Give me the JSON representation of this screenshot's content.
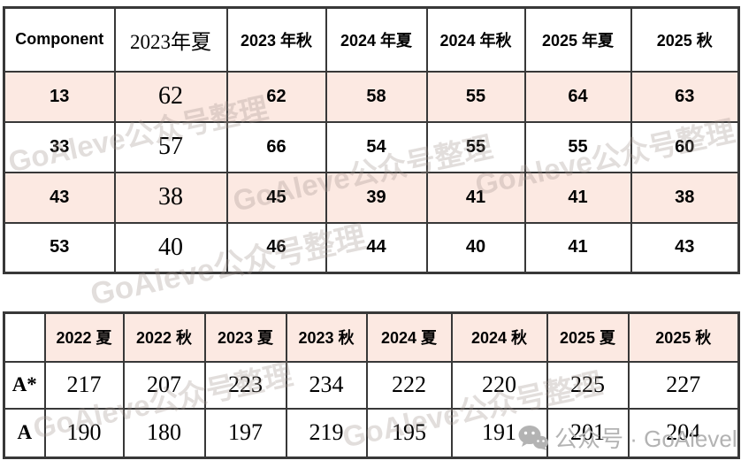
{
  "colors": {
    "row_pink": "#fce9e2",
    "border": "#383838",
    "watermark_gray": "#9e928c",
    "footer_gray": "#b3b3b3"
  },
  "table1": {
    "header": [
      "Component",
      "2023年夏",
      "2023 年秋",
      "2024 年夏",
      "2024 年秋",
      "2025 年夏",
      "2025 秋"
    ],
    "rows": [
      [
        "13",
        "62",
        "62",
        "58",
        "55",
        "64",
        "63"
      ],
      [
        "33",
        "57",
        "66",
        "54",
        "55",
        "55",
        "60"
      ],
      [
        "43",
        "38",
        "45",
        "39",
        "41",
        "41",
        "38"
      ],
      [
        "53",
        "40",
        "46",
        "44",
        "40",
        "41",
        "43"
      ]
    ]
  },
  "table2": {
    "header": [
      "",
      "2022 夏",
      "2022 秋",
      "2023 夏",
      "2023 秋",
      "2024 夏",
      "2024 秋",
      "2025 夏",
      "2025 秋"
    ],
    "rows": [
      [
        "A*",
        "217",
        "207",
        "223",
        "234",
        "222",
        "220",
        "225",
        "227"
      ],
      [
        "A",
        "190",
        "180",
        "197",
        "219",
        "195",
        "191",
        "201",
        "204"
      ]
    ]
  },
  "watermarks": {
    "diagonal_text": "GoAleve公众号整理",
    "footer_text": "公众号 · GoAlevel",
    "footer_icon": "wechat-icon"
  }
}
